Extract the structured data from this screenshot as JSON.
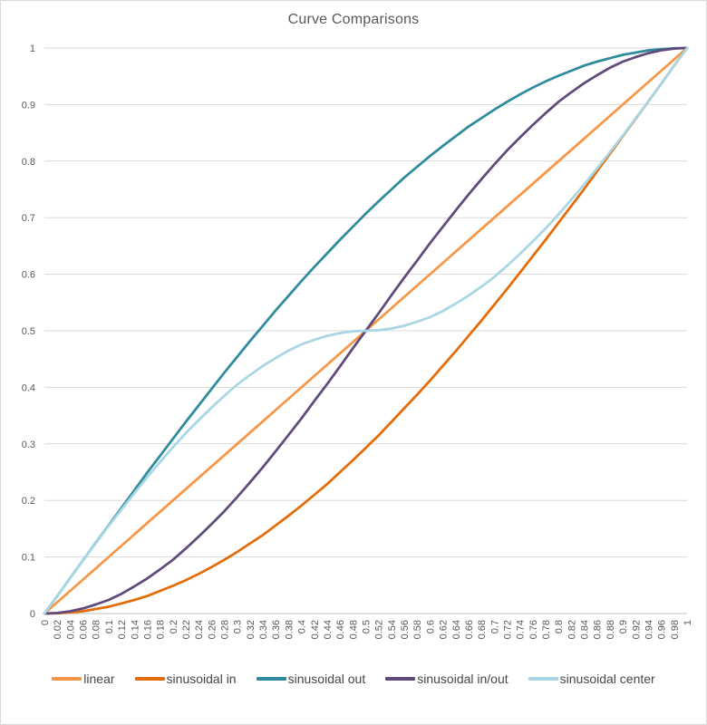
{
  "page": {
    "background": "#FFFFFF",
    "border_color": "#D9D9D9"
  },
  "chart_data": {
    "type": "line",
    "title": "Curve Comparisons",
    "title_color": "#595959",
    "axis_label_color": "#595959",
    "legend_text_color": "#474747",
    "gridline_color": "#D9D9D9",
    "axis_line_color": "#BFBFBF",
    "grid": "horizontal",
    "legend_position": "bottom",
    "x_tick_rotation": -90,
    "xlim": [
      0,
      1
    ],
    "ylim": [
      0,
      1
    ],
    "y_ticks": [
      "0",
      "0.1",
      "0.2",
      "0.3",
      "0.4",
      "0.5",
      "0.6",
      "0.7",
      "0.8",
      "0.9",
      "1"
    ],
    "x": [
      0,
      0.02,
      0.04,
      0.06,
      0.08,
      0.1,
      0.12,
      0.14,
      0.16,
      0.18,
      0.2,
      0.22,
      0.24,
      0.26,
      0.28,
      0.3,
      0.32,
      0.34,
      0.36,
      0.38,
      0.4,
      0.42,
      0.44,
      0.46,
      0.48,
      0.5,
      0.52,
      0.54,
      0.56,
      0.58,
      0.6,
      0.62,
      0.64,
      0.66,
      0.68,
      0.7,
      0.72,
      0.74,
      0.76,
      0.78,
      0.8,
      0.82,
      0.84,
      0.86,
      0.88,
      0.9,
      0.92,
      0.94,
      0.96,
      0.98,
      1
    ],
    "series": [
      {
        "name": "linear",
        "color": "#F79646",
        "values": [
          0,
          0.02,
          0.04,
          0.06,
          0.08,
          0.1,
          0.12,
          0.14,
          0.16,
          0.18,
          0.2,
          0.22,
          0.24,
          0.26,
          0.28,
          0.3,
          0.32,
          0.34,
          0.36,
          0.38,
          0.4,
          0.42,
          0.44,
          0.46,
          0.48,
          0.5,
          0.52,
          0.54,
          0.56,
          0.58,
          0.6,
          0.62,
          0.64,
          0.66,
          0.68,
          0.7,
          0.72,
          0.74,
          0.76,
          0.78,
          0.8,
          0.82,
          0.84,
          0.86,
          0.88,
          0.9,
          0.92,
          0.94,
          0.96,
          0.98,
          1
        ]
      },
      {
        "name": "sinusoidal in",
        "color": "#E36C09",
        "values": [
          0,
          0.0005,
          0.002,
          0.004,
          0.008,
          0.012,
          0.018,
          0.024,
          0.031,
          0.04,
          0.049,
          0.059,
          0.07,
          0.082,
          0.095,
          0.109,
          0.124,
          0.139,
          0.156,
          0.173,
          0.191,
          0.21,
          0.229,
          0.25,
          0.271,
          0.293,
          0.315,
          0.339,
          0.363,
          0.387,
          0.412,
          0.438,
          0.464,
          0.491,
          0.518,
          0.546,
          0.574,
          0.603,
          0.632,
          0.661,
          0.691,
          0.721,
          0.751,
          0.782,
          0.813,
          0.844,
          0.875,
          0.906,
          0.937,
          0.969,
          1
        ]
      },
      {
        "name": "sinusoidal out",
        "color": "#2E8B9C",
        "values": [
          0,
          0.031,
          0.063,
          0.094,
          0.125,
          0.156,
          0.187,
          0.218,
          0.249,
          0.279,
          0.309,
          0.339,
          0.368,
          0.397,
          0.426,
          0.454,
          0.482,
          0.509,
          0.536,
          0.562,
          0.588,
          0.613,
          0.637,
          0.661,
          0.684,
          0.707,
          0.729,
          0.75,
          0.771,
          0.79,
          0.809,
          0.827,
          0.844,
          0.861,
          0.876,
          0.891,
          0.905,
          0.918,
          0.93,
          0.941,
          0.951,
          0.96,
          0.969,
          0.976,
          0.982,
          0.988,
          0.992,
          0.996,
          0.998,
          0.9995,
          1
        ]
      },
      {
        "name": "sinusoidal in/out",
        "color": "#5F4A7A",
        "values": [
          0,
          0.001,
          0.004,
          0.009,
          0.016,
          0.024,
          0.035,
          0.048,
          0.062,
          0.078,
          0.095,
          0.115,
          0.136,
          0.158,
          0.181,
          0.206,
          0.232,
          0.259,
          0.287,
          0.316,
          0.345,
          0.376,
          0.406,
          0.437,
          0.469,
          0.5,
          0.531,
          0.563,
          0.594,
          0.624,
          0.655,
          0.684,
          0.713,
          0.741,
          0.768,
          0.794,
          0.819,
          0.842,
          0.864,
          0.885,
          0.905,
          0.922,
          0.938,
          0.952,
          0.965,
          0.976,
          0.984,
          0.991,
          0.996,
          0.999,
          1
        ]
      },
      {
        "name": "sinusoidal center",
        "color": "#A9D6E3",
        "values": [
          0,
          0.031,
          0.063,
          0.094,
          0.124,
          0.155,
          0.184,
          0.213,
          0.241,
          0.268,
          0.294,
          0.319,
          0.342,
          0.364,
          0.385,
          0.405,
          0.422,
          0.438,
          0.452,
          0.465,
          0.476,
          0.484,
          0.491,
          0.496,
          0.499,
          0.5,
          0.501,
          0.504,
          0.509,
          0.516,
          0.524,
          0.535,
          0.548,
          0.562,
          0.578,
          0.595,
          0.615,
          0.636,
          0.658,
          0.681,
          0.706,
          0.732,
          0.759,
          0.787,
          0.816,
          0.845,
          0.876,
          0.906,
          0.937,
          0.969,
          1
        ]
      }
    ]
  }
}
